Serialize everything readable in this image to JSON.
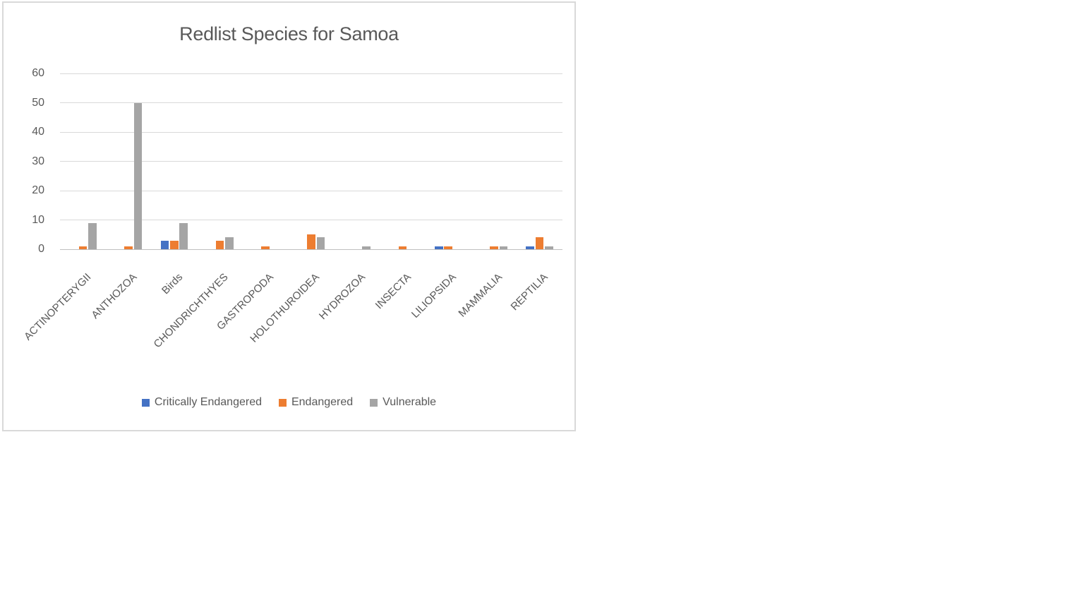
{
  "chart_data": {
    "type": "bar",
    "title": "Redlist Species for Samoa",
    "categories": [
      "ACTINOPTERYGII",
      "ANTHOZOA",
      "Birds",
      "CHONDRICHTHYES",
      "GASTROPODA",
      "HOLOTHUROIDEA",
      "HYDROZOA",
      "INSECTA",
      "LILIOPSIDA",
      "MAMMALIA",
      "REPTILIA"
    ],
    "series": [
      {
        "name": "Critically Endangered",
        "color": "#4472C4",
        "values": [
          0,
          0,
          3,
          0,
          0,
          0,
          0,
          0,
          1,
          0,
          1
        ]
      },
      {
        "name": "Endangered",
        "color": "#ED7D31",
        "values": [
          1,
          1,
          3,
          3,
          1,
          5,
          0,
          1,
          1,
          1,
          4
        ]
      },
      {
        "name": "Vulnerable",
        "color": "#A5A5A5",
        "values": [
          9,
          50,
          9,
          4,
          0,
          4,
          1,
          0,
          0,
          1,
          1
        ]
      }
    ],
    "xlabel": "",
    "ylabel": "",
    "y_ticks": [
      0,
      10,
      20,
      30,
      40,
      50,
      60
    ],
    "ylim": [
      0,
      60
    ],
    "grid": true,
    "legend_position": "bottom",
    "text_color": "#595959",
    "gridline_color": "#d9d9d9",
    "axisline_color": "#bfbfbf",
    "frame_border_color": "#d9d9d9"
  }
}
